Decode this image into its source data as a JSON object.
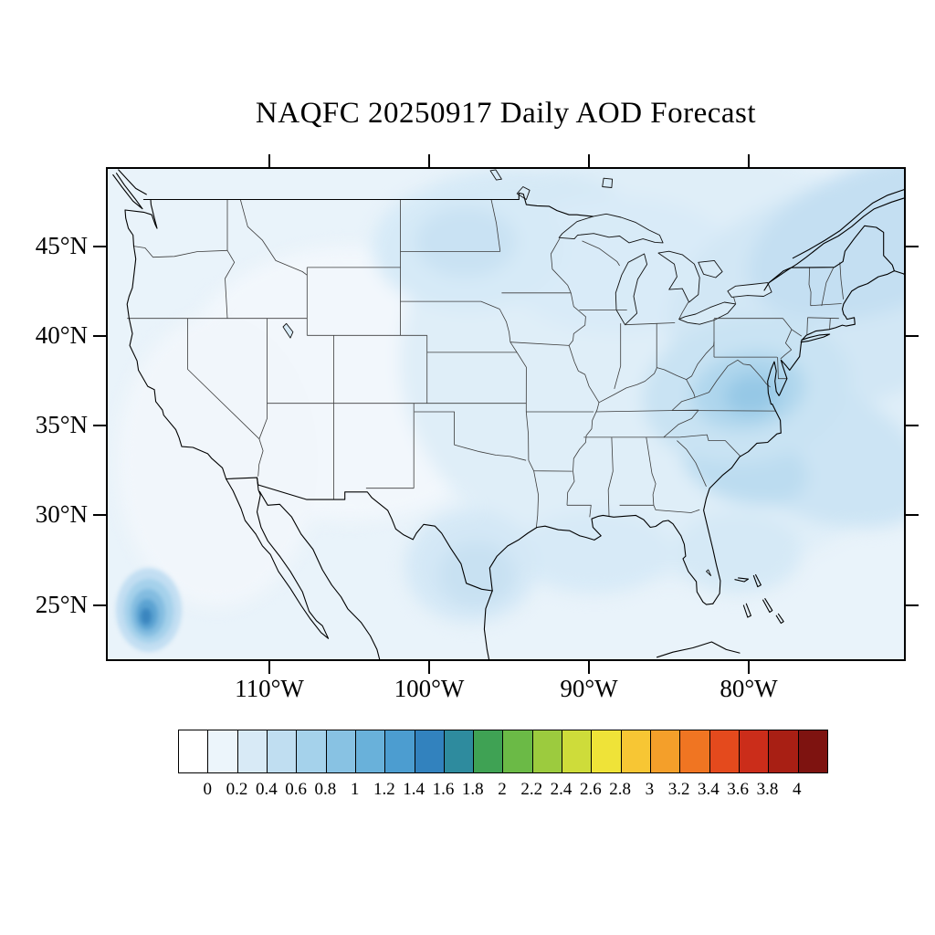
{
  "title": "NAQFC 20250917 Daily AOD Forecast",
  "axes": {
    "lat_ticks": [
      "45°N",
      "40°N",
      "35°N",
      "30°N",
      "25°N"
    ],
    "lon_ticks": [
      "110°W",
      "100°W",
      "90°W",
      "80°W"
    ]
  },
  "colorbar": {
    "labels": [
      "0",
      "0.2",
      "0.4",
      "0.6",
      "0.8",
      "1",
      "1.2",
      "1.4",
      "1.6",
      "1.8",
      "2",
      "2.2",
      "2.4",
      "2.6",
      "2.8",
      "3",
      "3.2",
      "3.4",
      "3.6",
      "3.8",
      "4"
    ],
    "colors": [
      "#FFFFFF",
      "#ECF5FB",
      "#D8EAF6",
      "#C0DEF1",
      "#A5D2EB",
      "#88C2E3",
      "#69B1DA",
      "#4C9DD0",
      "#3282BE",
      "#2E8B9E",
      "#3FA254",
      "#6BBA46",
      "#9CCB3E",
      "#CEDC3A",
      "#EFE338",
      "#F7C634",
      "#F49F2A",
      "#F07522",
      "#E44A1D",
      "#CB2D1A",
      "#A81F14",
      "#7E1310"
    ]
  },
  "chart_data": {
    "type": "heatmap",
    "title": "NAQFC 20250917 Daily AOD Forecast",
    "x_ticks": [
      "110°W",
      "100°W",
      "90°W",
      "80°W"
    ],
    "y_ticks": [
      "45°N",
      "40°N",
      "35°N",
      "30°N",
      "25°N"
    ],
    "colorbar_levels": [
      0,
      0.2,
      0.4,
      0.6,
      0.8,
      1,
      1.2,
      1.4,
      1.6,
      1.8,
      2,
      2.2,
      2.4,
      2.6,
      2.8,
      3,
      3.2,
      3.4,
      3.6,
      3.8,
      4
    ],
    "colorbar_colors": [
      "#FFFFFF",
      "#ECF5FB",
      "#D8EAF6",
      "#C0DEF1",
      "#A5D2EB",
      "#88C2E3",
      "#69B1DA",
      "#4C9DD0",
      "#3282BE",
      "#2E8B9E",
      "#3FA254",
      "#6BBA46",
      "#9CCB3E",
      "#CEDC3A",
      "#EFE338",
      "#F7C634",
      "#F49F2A",
      "#F07522",
      "#E44A1D",
      "#CB2D1A",
      "#A81F14",
      "#7E1310"
    ],
    "legend_position": "bottom",
    "field_summary": [
      {
        "region": "Most of CONUS interior (Rockies, Southwest, central Plains)",
        "aod_range": [
          0,
          0.2
        ]
      },
      {
        "region": "Eastern US, Great Lakes, Gulf of Mexico and western Atlantic",
        "aod_range": [
          0.1,
          0.3
        ]
      },
      {
        "region": "Mid-Atlantic maximum (Virginia / Chesapeake Bay area)",
        "aod_range": [
          0.4,
          0.6
        ]
      },
      {
        "region": "Northern Plains (North Dakota / Minnesota)",
        "aod_range": [
          0.2,
          0.4
        ]
      },
      {
        "region": "South Texas Gulf coast",
        "aod_range": [
          0.2,
          0.4
        ]
      },
      {
        "region": "Carolinas coastal waters and offshore Atlantic swath",
        "aod_range": [
          0.3,
          0.5
        ]
      },
      {
        "region": "Northeast Atlantic offshore (top right of domain)",
        "aod_range": [
          0.2,
          0.5
        ]
      },
      {
        "region": "Pacific bullseye west of Baja California (bottom left)",
        "aod_range": [
          0.6,
          1.2
        ]
      }
    ]
  }
}
